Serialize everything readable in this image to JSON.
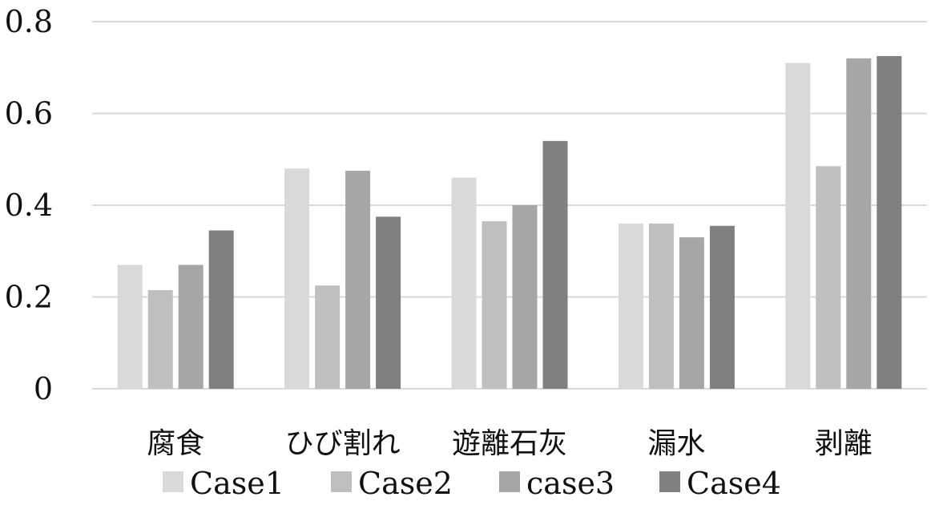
{
  "chart_data": {
    "type": "bar",
    "title": "",
    "xlabel": "",
    "ylabel": "",
    "categories": [
      "腐食",
      "ひび割れ",
      "遊離石灰",
      "漏水",
      "剥離"
    ],
    "series": [
      {
        "name": "Case1",
        "values": [
          0.27,
          0.48,
          0.46,
          0.36,
          0.71
        ]
      },
      {
        "name": "Case2",
        "values": [
          0.215,
          0.225,
          0.365,
          0.36,
          0.485
        ]
      },
      {
        "name": "case3",
        "values": [
          0.27,
          0.475,
          0.4,
          0.33,
          0.72
        ]
      },
      {
        "name": "Case4",
        "values": [
          0.345,
          0.375,
          0.54,
          0.355,
          0.725
        ]
      }
    ],
    "ylim": [
      0,
      0.8
    ],
    "yticks": [
      0,
      0.2,
      0.4,
      0.6,
      0.8
    ],
    "ytick_labels": [
      "0",
      "0.2",
      "0.4",
      "0.6",
      "0.8"
    ],
    "grid": true,
    "legend_position": "bottom",
    "colors": [
      "#d9d9d9",
      "#bfbfbf",
      "#a6a6a6",
      "#808080"
    ],
    "grid_color": "#d9d9d9"
  }
}
